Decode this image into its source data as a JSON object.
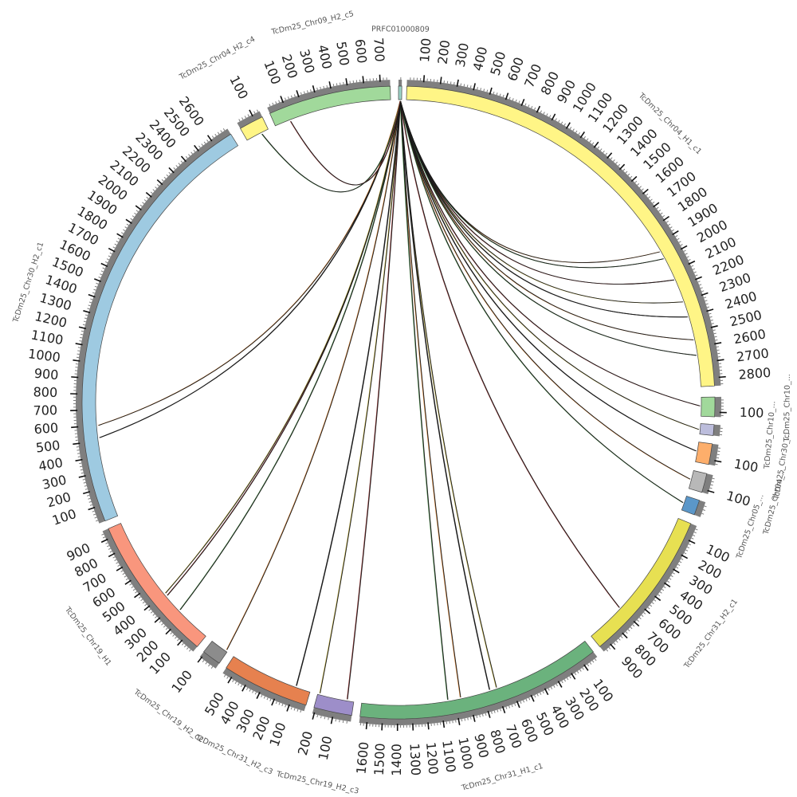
{
  "segments": [
    {
      "name": "PRFC01000809",
      "length": 30,
      "color": "#9bd3c7",
      "ticks": [],
      "start_deg": 0.0,
      "end_deg": 0.6,
      "label_side": "outer"
    },
    {
      "name": "TcDm25_Chr04_H1_c1",
      "length": 2850,
      "color": "#fff586",
      "ticks": [
        100,
        200,
        300,
        400,
        500,
        600,
        700,
        800,
        900,
        1000,
        1100,
        1200,
        1300,
        1400,
        1500,
        1600,
        1700,
        1800,
        1900,
        2000,
        2100,
        2200,
        2300,
        2400,
        2500,
        2600,
        2700,
        2800
      ],
      "start_deg": 1.5,
      "end_deg": 87.0,
      "label_side": "outer"
    },
    {
      "name": "TcDm25_Chr10_...",
      "length": 130,
      "color": "#a1d99b",
      "ticks": [
        100
      ],
      "start_deg": 89.0,
      "end_deg": 92.6,
      "label_side": "outer"
    },
    {
      "name": "TcDm25_Chr10_...",
      "length": 70,
      "color": "#bcbddc",
      "ticks": [],
      "start_deg": 94.0,
      "end_deg": 96.0,
      "label_side": "outer"
    },
    {
      "name": "TcDm25_Chr30_...",
      "length": 130,
      "color": "#fdae6b",
      "ticks": [
        100
      ],
      "start_deg": 97.5,
      "end_deg": 101.3,
      "label_side": "outer"
    },
    {
      "name": "TcDm25_Chr04_...",
      "length": 120,
      "color": "#b8b8b8",
      "ticks": [
        100
      ],
      "start_deg": 103.0,
      "end_deg": 106.5,
      "label_side": "outer"
    },
    {
      "name": "TcDm25_Chr05_...",
      "length": 80,
      "color": "#5b97c9",
      "ticks": [],
      "start_deg": 108.0,
      "end_deg": 110.8,
      "label_side": "outer"
    },
    {
      "name": "TcDm25_Chr31_H2_c1",
      "length": 960,
      "color": "#e7e052",
      "ticks": [
        100,
        200,
        300,
        400,
        500,
        600,
        700,
        800,
        900
      ],
      "start_deg": 112.5,
      "end_deg": 140.5,
      "label_side": "outer"
    },
    {
      "name": "TcDm25_Chr31_H1_c1",
      "length": 1650,
      "color": "#6bb27d",
      "ticks": [
        100,
        200,
        300,
        400,
        500,
        600,
        700,
        800,
        900,
        1000,
        1100,
        1200,
        1300,
        1400,
        1500,
        1600
      ],
      "start_deg": 142.0,
      "end_deg": 187.0,
      "label_side": "outer"
    },
    {
      "name": "TcDm25_Chr19_H2_c3",
      "length": 210,
      "color": "#9d8ec9",
      "ticks": [
        100,
        200
      ],
      "start_deg": 188.5,
      "end_deg": 195.5,
      "label_side": "outer"
    },
    {
      "name": "TcDm25_Chr31_H2_c3",
      "length": 560,
      "color": "#e6814f",
      "ticks": [
        100,
        200,
        300,
        400,
        500
      ],
      "start_deg": 197.0,
      "end_deg": 213.0,
      "label_side": "outer"
    },
    {
      "name": "TcDm25_Chr19_H2_c2",
      "length": 110,
      "color": "#8c8c8c",
      "ticks": [
        100
      ],
      "start_deg": 214.5,
      "end_deg": 218.0,
      "label_side": "outer"
    },
    {
      "name": "TcDm25_Chr19_H1",
      "length": 960,
      "color": "#f9967d",
      "ticks": [
        100,
        200,
        300,
        400,
        500,
        600,
        700,
        800,
        900
      ],
      "start_deg": 219.5,
      "end_deg": 246.5,
      "label_side": "outer"
    },
    {
      "name": "TcDm25_Chr30_H2_c1",
      "length": 2720,
      "color": "#9ecae1",
      "ticks": [
        100,
        200,
        300,
        400,
        500,
        600,
        700,
        800,
        900,
        1000,
        1100,
        1200,
        1300,
        1400,
        1500,
        1600,
        1700,
        1800,
        1900,
        2000,
        2100,
        2200,
        2300,
        2400,
        2500,
        2600
      ],
      "start_deg": 248.0,
      "end_deg": 328.0,
      "label_side": "outer"
    },
    {
      "name": "TcDm25_Chr04_H2_c4",
      "length": 150,
      "color": "#fff586",
      "ticks": [
        100
      ],
      "start_deg": 330.0,
      "end_deg": 334.5,
      "label_side": "outer"
    },
    {
      "name": "TcDm25_Chr09_H2_c5",
      "length": 760,
      "color": "#a1d99b",
      "ticks": [
        100,
        200,
        300,
        400,
        500,
        600,
        700
      ],
      "start_deg": 336.0,
      "end_deg": 358.5,
      "label_side": "outer"
    }
  ],
  "links": [
    {
      "target_segment": 1,
      "position": 1950
    },
    {
      "target_segment": 1,
      "position": 2000
    },
    {
      "target_segment": 1,
      "position": 2150
    },
    {
      "target_segment": 1,
      "position": 2300
    },
    {
      "target_segment": 1,
      "position": 2400
    },
    {
      "target_segment": 1,
      "position": 2550
    },
    {
      "target_segment": 1,
      "position": 2650
    },
    {
      "target_segment": 2,
      "position": 60
    },
    {
      "target_segment": 3,
      "position": 40
    },
    {
      "target_segment": 4,
      "position": 60
    },
    {
      "target_segment": 5,
      "position": 60
    },
    {
      "target_segment": 6,
      "position": 40
    },
    {
      "target_segment": 7,
      "position": 700
    },
    {
      "target_segment": 8,
      "position": 700
    },
    {
      "target_segment": 8,
      "position": 750
    },
    {
      "target_segment": 8,
      "position": 960
    },
    {
      "target_segment": 8,
      "position": 1050
    },
    {
      "target_segment": 9,
      "position": 40
    },
    {
      "target_segment": 9,
      "position": 200
    },
    {
      "target_segment": 10,
      "position": 100
    },
    {
      "target_segment": 11,
      "position": 10
    },
    {
      "target_segment": 12,
      "position": 250
    },
    {
      "target_segment": 12,
      "position": 380
    },
    {
      "target_segment": 12,
      "position": 400
    },
    {
      "target_segment": 13,
      "position": 520
    },
    {
      "target_segment": 13,
      "position": 600
    },
    {
      "target_segment": 14,
      "position": 100
    },
    {
      "target_segment": 15,
      "position": 100
    }
  ],
  "link_colors": [
    "#1a1a1a",
    "#d17a2c",
    "#3a7a3a",
    "#8b2d2d",
    "#b8a83c"
  ]
}
